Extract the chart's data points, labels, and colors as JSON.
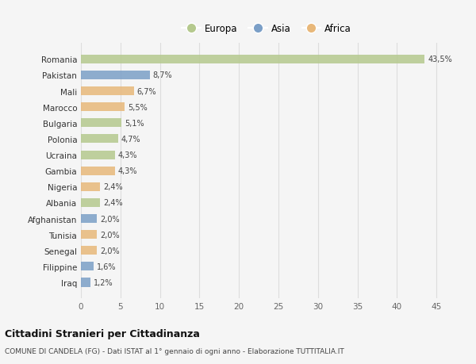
{
  "countries": [
    "Romania",
    "Pakistan",
    "Mali",
    "Marocco",
    "Bulgaria",
    "Polonia",
    "Ucraina",
    "Gambia",
    "Nigeria",
    "Albania",
    "Afghanistan",
    "Tunisia",
    "Senegal",
    "Filippine",
    "Iraq"
  ],
  "values": [
    43.5,
    8.7,
    6.7,
    5.5,
    5.1,
    4.7,
    4.3,
    4.3,
    2.4,
    2.4,
    2.0,
    2.0,
    2.0,
    1.6,
    1.2
  ],
  "labels": [
    "43,5%",
    "8,7%",
    "6,7%",
    "5,5%",
    "5,1%",
    "4,7%",
    "4,3%",
    "4,3%",
    "2,4%",
    "2,4%",
    "2,0%",
    "2,0%",
    "2,0%",
    "1,6%",
    "1,2%"
  ],
  "continents": [
    "Europa",
    "Asia",
    "Africa",
    "Africa",
    "Europa",
    "Europa",
    "Europa",
    "Africa",
    "Africa",
    "Europa",
    "Asia",
    "Africa",
    "Africa",
    "Asia",
    "Asia"
  ],
  "colors": {
    "Europa": "#b5c98e",
    "Asia": "#7b9fc7",
    "Africa": "#e8b87a"
  },
  "title": "Cittadini Stranieri per Cittadinanza",
  "subtitle": "COMUNE DI CANDELA (FG) - Dati ISTAT al 1° gennaio di ogni anno - Elaborazione TUTTITALIA.IT",
  "xlim": [
    0,
    47
  ],
  "xticks": [
    0,
    5,
    10,
    15,
    20,
    25,
    30,
    35,
    40,
    45
  ],
  "background_color": "#f5f5f5",
  "grid_color": "#dddddd",
  "bar_height": 0.55,
  "legend_labels": [
    "Europa",
    "Asia",
    "Africa"
  ]
}
